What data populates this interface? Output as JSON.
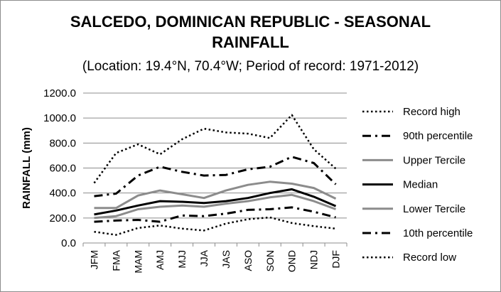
{
  "chart_data": {
    "type": "line",
    "title_line1": "SALCEDO, DOMINICAN REPUBLIC - SEASONAL",
    "title_line2": "RAINFALL",
    "subtitle": "(Location: 19.4°N, 70.4°W; Period of record: 1971-2012)",
    "ylabel": "RAINFALL (mm)",
    "xlabel": "",
    "ylim": [
      0,
      1200
    ],
    "yticks": [
      "0.0",
      "200.0",
      "400.0",
      "600.0",
      "800.0",
      "1000.0",
      "1200.0"
    ],
    "grid": true,
    "legend_position": "right",
    "categories": [
      "JFM",
      "FMA",
      "MAM",
      "AMJ",
      "MJJ",
      "JJA",
      "JAS",
      "ASO",
      "SON",
      "OND",
      "NDJ",
      "DJF"
    ],
    "series": [
      {
        "name": "Record high",
        "style": "dotted",
        "color": "#000000",
        "values": [
          480,
          720,
          790,
          710,
          830,
          915,
          885,
          875,
          840,
          1025,
          750,
          595
        ]
      },
      {
        "name": "90th percentile",
        "style": "dashdot",
        "color": "#000000",
        "values": [
          375,
          395,
          540,
          610,
          570,
          540,
          545,
          590,
          610,
          690,
          640,
          470
        ]
      },
      {
        "name": "Upper Tercile",
        "style": "solid",
        "color": "#8c8c8c",
        "values": [
          280,
          280,
          380,
          420,
          390,
          360,
          420,
          465,
          490,
          475,
          440,
          355
        ]
      },
      {
        "name": "Median",
        "style": "solid",
        "color": "#000000",
        "values": [
          228,
          260,
          300,
          335,
          330,
          320,
          335,
          360,
          400,
          430,
          370,
          295
        ]
      },
      {
        "name": "Lower Tercile",
        "style": "solid",
        "color": "#8c8c8c",
        "values": [
          200,
          215,
          270,
          290,
          300,
          290,
          315,
          335,
          365,
          385,
          335,
          270
        ]
      },
      {
        "name": "10th percentile",
        "style": "dashdot",
        "color": "#000000",
        "values": [
          170,
          180,
          185,
          170,
          220,
          215,
          235,
          265,
          270,
          285,
          250,
          205
        ]
      },
      {
        "name": "Record low",
        "style": "dotted",
        "color": "#000000",
        "values": [
          90,
          65,
          120,
          140,
          115,
          100,
          155,
          190,
          205,
          160,
          135,
          115
        ]
      }
    ]
  }
}
